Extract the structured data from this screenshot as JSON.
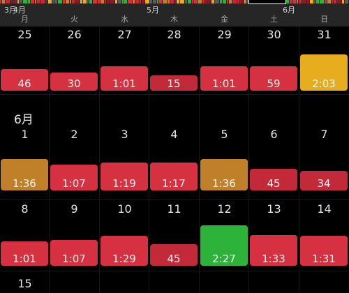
{
  "timeline": {
    "month_labels": [
      "3月",
      "4月",
      "5月",
      "6月"
    ]
  },
  "weekdays": [
    "月",
    "火",
    "水",
    "木",
    "金",
    "土",
    "日"
  ],
  "june_label": "6月",
  "weeks": [
    {
      "days": [
        {
          "day": "25",
          "duration": "46",
          "color": "#d53140"
        },
        {
          "day": "26",
          "duration": "30",
          "color": "#d53140"
        },
        {
          "day": "27",
          "duration": "1:01",
          "color": "#d53140"
        },
        {
          "day": "28",
          "duration": "15",
          "color": "#c22a39"
        },
        {
          "day": "29",
          "duration": "1:01",
          "color": "#d53140"
        },
        {
          "day": "30",
          "duration": "59",
          "color": "#d53140"
        },
        {
          "day": "31",
          "duration": "2:03",
          "color": "#e6ad1e"
        }
      ]
    },
    {
      "days": [
        {
          "day": "1",
          "duration": "1:36",
          "color": "#c0802a"
        },
        {
          "day": "2",
          "duration": "1:07",
          "color": "#d53140"
        },
        {
          "day": "3",
          "duration": "1:19",
          "color": "#d53140"
        },
        {
          "day": "4",
          "duration": "1:17",
          "color": "#d53140"
        },
        {
          "day": "5",
          "duration": "1:36",
          "color": "#c0802a"
        },
        {
          "day": "6",
          "duration": "45",
          "color": "#c22a39"
        },
        {
          "day": "7",
          "duration": "34",
          "color": "#c22a39"
        }
      ]
    },
    {
      "days": [
        {
          "day": "8",
          "duration": "1:01",
          "color": "#d53140"
        },
        {
          "day": "9",
          "duration": "1:07",
          "color": "#d53140"
        },
        {
          "day": "10",
          "duration": "1:29",
          "color": "#d53140"
        },
        {
          "day": "11",
          "duration": "45",
          "color": "#c22a39"
        },
        {
          "day": "12",
          "duration": "2:27",
          "color": "#2eb33a"
        },
        {
          "day": "13",
          "duration": "1:33",
          "color": "#d53140"
        },
        {
          "day": "14",
          "duration": "1:31",
          "color": "#d53140"
        }
      ]
    },
    {
      "days": [
        {
          "day": "15"
        }
      ]
    }
  ]
}
